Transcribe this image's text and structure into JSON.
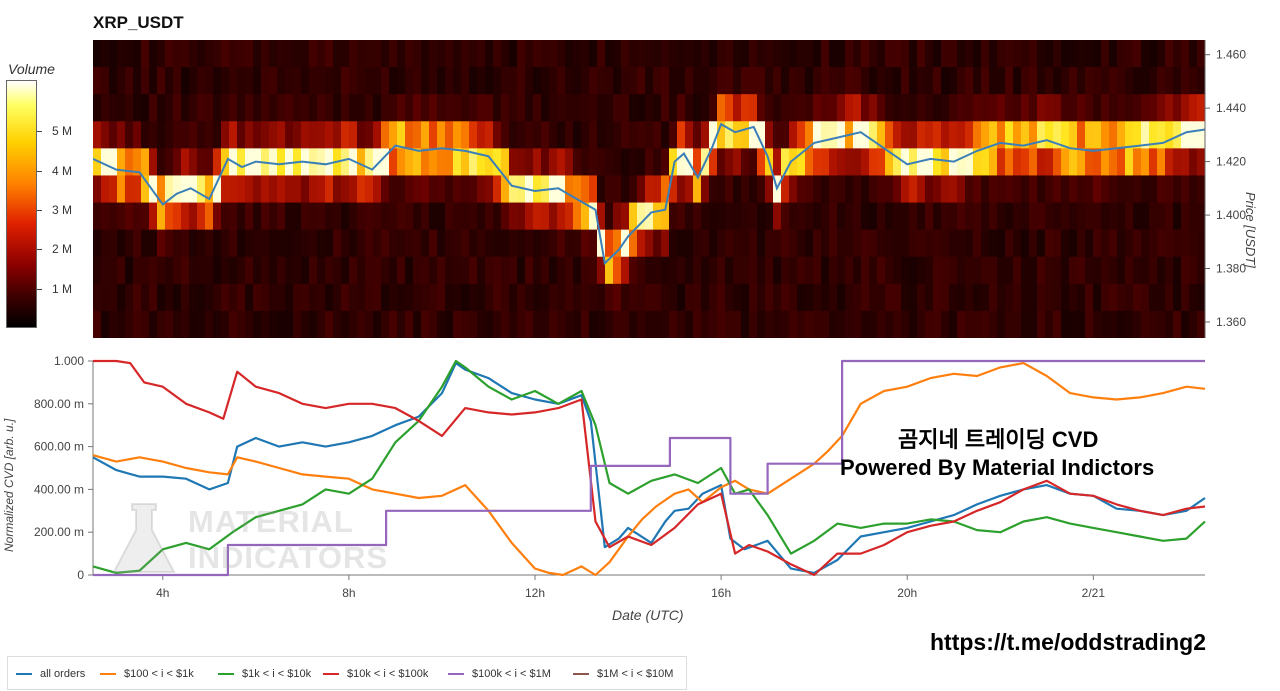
{
  "title": "XRP_USDT",
  "volume_colorbar": {
    "label": "Volume",
    "ticks": [
      "5 M",
      "4 M",
      "3 M",
      "2 M",
      "1 M"
    ],
    "tick_values": [
      5,
      4,
      3,
      2,
      1
    ],
    "max": 6.3
  },
  "price_axis": {
    "title": "Price [USDT]",
    "ticks": [
      "1.460",
      "1.440",
      "1.420",
      "1.400",
      "1.380",
      "1.360"
    ],
    "tick_values": [
      1.46,
      1.44,
      1.42,
      1.4,
      1.38,
      1.36
    ],
    "range": [
      1.354,
      1.4655
    ]
  },
  "cvd_axis": {
    "ylabel": "Normalized CVD [arb. u.]",
    "ticks": [
      "1.000",
      "800.00 m",
      "600.00 m",
      "400.00 m",
      "200.00 m",
      "0"
    ],
    "tick_values": [
      1.0,
      0.8,
      0.6,
      0.4,
      0.2,
      0.0
    ]
  },
  "x_axis": {
    "label": "Date (UTC)",
    "range_hours": [
      2.5,
      26.4
    ],
    "ticks": [
      {
        "label": "4h",
        "hour": 4
      },
      {
        "label": "8h",
        "hour": 8
      },
      {
        "label": "12h",
        "hour": 12
      },
      {
        "label": "16h",
        "hour": 16
      },
      {
        "label": "20h",
        "hour": 20
      },
      {
        "label": "2/21",
        "hour": 24
      }
    ]
  },
  "chart_data": [
    {
      "type": "heatmap",
      "title": "XRP_USDT",
      "note": "Order book volume heatmap with price line",
      "price_line": {
        "name": "Price",
        "hours": [
          2.5,
          3.0,
          3.5,
          4.0,
          4.3,
          4.6,
          5.0,
          5.4,
          5.7,
          6.0,
          6.5,
          7.0,
          7.5,
          8.0,
          8.5,
          9.0,
          9.5,
          10.0,
          10.5,
          11.0,
          11.5,
          12.0,
          12.5,
          13.0,
          13.3,
          13.5,
          13.8,
          14.0,
          14.5,
          14.8,
          15.0,
          15.2,
          15.5,
          15.8,
          16.0,
          16.3,
          16.7,
          17.0,
          17.2,
          17.5,
          18.0,
          18.5,
          19.0,
          19.5,
          20.0,
          20.5,
          21.0,
          21.5,
          22.0,
          22.5,
          23.0,
          23.5,
          24.0,
          24.5,
          25.0,
          25.5,
          26.0,
          26.4
        ],
        "values": [
          1.421,
          1.417,
          1.416,
          1.404,
          1.408,
          1.41,
          1.406,
          1.421,
          1.418,
          1.42,
          1.419,
          1.42,
          1.419,
          1.421,
          1.417,
          1.426,
          1.424,
          1.425,
          1.424,
          1.422,
          1.411,
          1.409,
          1.41,
          1.405,
          1.402,
          1.382,
          1.387,
          1.392,
          1.401,
          1.402,
          1.42,
          1.423,
          1.414,
          1.425,
          1.434,
          1.431,
          1.433,
          1.422,
          1.41,
          1.42,
          1.427,
          1.429,
          1.431,
          1.425,
          1.419,
          1.421,
          1.42,
          1.424,
          1.427,
          1.426,
          1.428,
          1.425,
          1.424,
          1.425,
          1.426,
          1.427,
          1.431,
          1.432
        ]
      },
      "price_levels": [
        1.46,
        1.45,
        1.44,
        1.43,
        1.42,
        1.41,
        1.4,
        1.39,
        1.38,
        1.37,
        1.36
      ],
      "volume_units": "M"
    },
    {
      "type": "line",
      "title": "",
      "xlabel": "Date (UTC)",
      "ylabel": "Normalized CVD [arb. u.]",
      "ylim": [
        0,
        1.0
      ],
      "series": [
        {
          "name": "all orders",
          "color": "#1f77b4",
          "hours": [
            2.5,
            3.0,
            3.5,
            4.0,
            4.5,
            5.0,
            5.4,
            5.6,
            6.0,
            6.5,
            7.0,
            7.5,
            8.0,
            8.5,
            9.0,
            9.5,
            10.0,
            10.3,
            10.5,
            11.0,
            11.5,
            12.0,
            12.5,
            13.0,
            13.2,
            13.5,
            13.8,
            14.0,
            14.5,
            14.8,
            15.0,
            15.3,
            15.6,
            16.0,
            16.2,
            16.5,
            17.0,
            17.5,
            18.0,
            18.5,
            19.0,
            19.5,
            20.0,
            20.5,
            21.0,
            21.5,
            22.0,
            22.5,
            23.0,
            23.5,
            24.0,
            24.5,
            25.0,
            25.5,
            26.0,
            26.4
          ],
          "values": [
            0.55,
            0.49,
            0.46,
            0.46,
            0.45,
            0.4,
            0.43,
            0.6,
            0.64,
            0.6,
            0.62,
            0.6,
            0.62,
            0.65,
            0.7,
            0.74,
            0.85,
            0.99,
            0.96,
            0.92,
            0.85,
            0.82,
            0.8,
            0.84,
            0.72,
            0.13,
            0.17,
            0.22,
            0.15,
            0.25,
            0.3,
            0.31,
            0.38,
            0.42,
            0.17,
            0.12,
            0.16,
            0.03,
            0.01,
            0.07,
            0.18,
            0.2,
            0.22,
            0.25,
            0.28,
            0.33,
            0.37,
            0.4,
            0.42,
            0.38,
            0.37,
            0.31,
            0.3,
            0.28,
            0.3,
            0.36
          ]
        },
        {
          "name": "$100 < i < $1k",
          "color": "#ff7f0e",
          "hours": [
            2.5,
            3.0,
            3.5,
            4.0,
            4.5,
            5.0,
            5.4,
            5.6,
            6.0,
            6.5,
            7.0,
            7.5,
            8.0,
            8.5,
            9.0,
            9.5,
            10.0,
            10.5,
            11.0,
            11.5,
            12.0,
            12.3,
            12.6,
            13.0,
            13.3,
            13.6,
            14.0,
            14.3,
            14.6,
            15.0,
            15.3,
            15.6,
            16.0,
            16.3,
            16.6,
            17.0,
            17.5,
            18.0,
            18.3,
            18.6,
            19.0,
            19.5,
            20.0,
            20.5,
            21.0,
            21.5,
            22.0,
            22.5,
            23.0,
            23.5,
            24.0,
            24.5,
            25.0,
            25.5,
            26.0,
            26.4
          ],
          "values": [
            0.56,
            0.53,
            0.55,
            0.53,
            0.5,
            0.48,
            0.47,
            0.55,
            0.53,
            0.5,
            0.47,
            0.46,
            0.45,
            0.4,
            0.38,
            0.36,
            0.37,
            0.42,
            0.3,
            0.15,
            0.03,
            0.01,
            0.0,
            0.04,
            0.0,
            0.06,
            0.18,
            0.26,
            0.32,
            0.38,
            0.4,
            0.34,
            0.41,
            0.44,
            0.4,
            0.38,
            0.45,
            0.52,
            0.58,
            0.65,
            0.8,
            0.86,
            0.88,
            0.92,
            0.94,
            0.93,
            0.97,
            0.99,
            0.93,
            0.85,
            0.83,
            0.82,
            0.83,
            0.85,
            0.88,
            0.87
          ]
        },
        {
          "name": "$1k < i < $10k",
          "color": "#2ca02c",
          "hours": [
            2.5,
            3.0,
            3.5,
            4.0,
            4.5,
            5.0,
            5.5,
            6.0,
            6.5,
            7.0,
            7.5,
            8.0,
            8.5,
            9.0,
            9.5,
            10.0,
            10.3,
            10.5,
            11.0,
            11.5,
            12.0,
            12.5,
            13.0,
            13.3,
            13.6,
            14.0,
            14.5,
            15.0,
            15.5,
            16.0,
            16.3,
            16.6,
            17.0,
            17.5,
            18.0,
            18.5,
            19.0,
            19.5,
            20.0,
            20.5,
            21.0,
            21.5,
            22.0,
            22.5,
            23.0,
            23.5,
            24.0,
            24.5,
            25.0,
            25.5,
            26.0,
            26.4
          ],
          "values": [
            0.04,
            0.01,
            0.02,
            0.12,
            0.15,
            0.12,
            0.2,
            0.27,
            0.3,
            0.33,
            0.4,
            0.38,
            0.45,
            0.62,
            0.72,
            0.88,
            1.0,
            0.97,
            0.88,
            0.82,
            0.86,
            0.8,
            0.86,
            0.7,
            0.43,
            0.38,
            0.44,
            0.47,
            0.43,
            0.5,
            0.38,
            0.4,
            0.28,
            0.1,
            0.16,
            0.24,
            0.22,
            0.24,
            0.24,
            0.26,
            0.25,
            0.21,
            0.2,
            0.25,
            0.27,
            0.24,
            0.22,
            0.2,
            0.18,
            0.16,
            0.17,
            0.25
          ]
        },
        {
          "name": "$10k < i < $100k",
          "color": "#d62728",
          "hours": [
            2.5,
            3.0,
            3.3,
            3.6,
            4.0,
            4.5,
            5.0,
            5.3,
            5.6,
            6.0,
            6.5,
            7.0,
            7.5,
            8.0,
            8.5,
            9.0,
            9.5,
            10.0,
            10.5,
            11.0,
            11.5,
            12.0,
            12.5,
            13.0,
            13.3,
            13.6,
            14.0,
            14.5,
            15.0,
            15.5,
            16.0,
            16.3,
            16.6,
            17.0,
            17.5,
            18.0,
            18.5,
            19.0,
            19.5,
            20.0,
            20.5,
            21.0,
            21.5,
            22.0,
            22.5,
            23.0,
            23.5,
            24.0,
            24.5,
            25.0,
            25.5,
            26.0,
            26.4
          ],
          "values": [
            1.0,
            1.0,
            0.99,
            0.9,
            0.88,
            0.8,
            0.76,
            0.73,
            0.95,
            0.88,
            0.85,
            0.8,
            0.78,
            0.8,
            0.8,
            0.78,
            0.72,
            0.65,
            0.78,
            0.76,
            0.75,
            0.76,
            0.78,
            0.82,
            0.25,
            0.13,
            0.18,
            0.14,
            0.22,
            0.33,
            0.38,
            0.1,
            0.14,
            0.11,
            0.05,
            0.0,
            0.1,
            0.1,
            0.14,
            0.2,
            0.23,
            0.25,
            0.3,
            0.34,
            0.4,
            0.44,
            0.38,
            0.37,
            0.33,
            0.3,
            0.28,
            0.31,
            0.32
          ]
        },
        {
          "name": "$100k < i < $1M",
          "color": "#9467bd",
          "hours": [
            2.5,
            5.4,
            5.4,
            8.8,
            8.8,
            13.2,
            13.2,
            14.9,
            14.9,
            16.2,
            16.2,
            17.0,
            17.0,
            18.6,
            18.6,
            26.4
          ],
          "values": [
            0.0,
            0.0,
            0.14,
            0.14,
            0.3,
            0.3,
            0.51,
            0.51,
            0.64,
            0.64,
            0.38,
            0.38,
            0.52,
            0.52,
            1.0,
            1.0
          ]
        },
        {
          "name": "$1M < i < $10M",
          "color": "#8c564b",
          "hours": [],
          "values": []
        }
      ]
    }
  ],
  "overlay": {
    "line1": "곰지네 트레이딩 CVD",
    "line2": "Powered By Material Indictors"
  },
  "watermark": {
    "line1": "MATERIAL",
    "line2": "INDICATORS"
  },
  "url": "https://t.me/oddstrading2"
}
